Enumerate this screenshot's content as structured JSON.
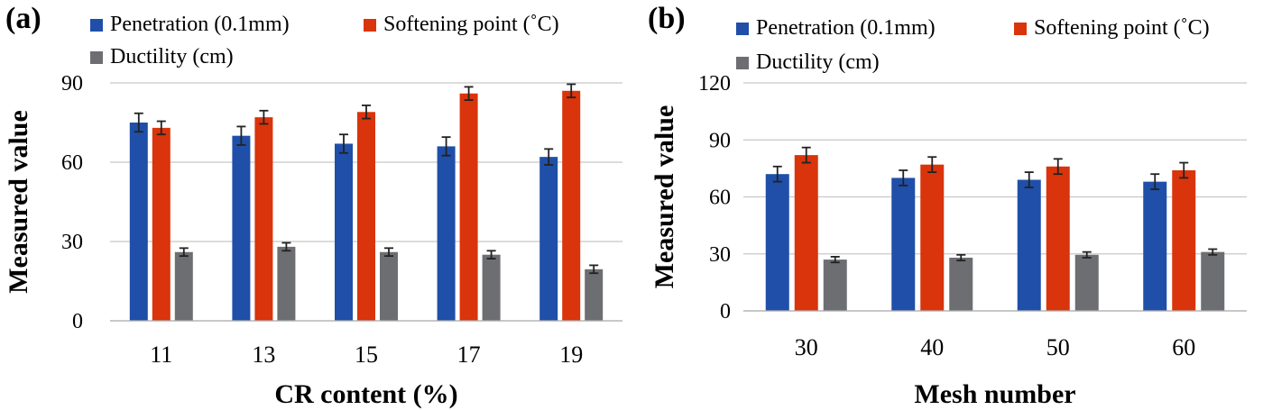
{
  "chart_data": [
    {
      "type": "bar",
      "panel_label": "(a)",
      "categories": [
        "11",
        "13",
        "15",
        "17",
        "19"
      ],
      "series": [
        {
          "name": "Penetration (0.1mm)",
          "color": "#1f4fa8",
          "values": [
            75,
            70,
            67,
            66,
            62
          ],
          "errors": [
            3.5,
            3.5,
            3.5,
            3.5,
            3
          ]
        },
        {
          "name": "Softening point (˚C)",
          "color": "#d9340b",
          "values": [
            73,
            77,
            79,
            86,
            87
          ],
          "errors": [
            2.5,
            2.5,
            2.5,
            2.5,
            2.5
          ]
        },
        {
          "name": "Ductility (cm)",
          "color": "#6d6e71",
          "values": [
            26,
            28,
            26,
            25,
            19.5
          ],
          "errors": [
            1.5,
            1.5,
            1.5,
            1.5,
            1.5
          ]
        }
      ],
      "xlabel": "CR content (%)",
      "ylabel": "Measured value",
      "ylim": [
        0,
        90
      ],
      "yticks": [
        0,
        30,
        60,
        90
      ],
      "ytick_labels": [
        "0",
        "30",
        "60",
        "90"
      ],
      "grid": true
    },
    {
      "type": "bar",
      "panel_label": "(b)",
      "categories": [
        "30",
        "40",
        "50",
        "60"
      ],
      "series": [
        {
          "name": "Penetration (0.1mm)",
          "color": "#1f4fa8",
          "values": [
            72,
            70,
            69,
            68
          ],
          "errors": [
            4,
            4,
            4,
            4
          ]
        },
        {
          "name": "Softening point (˚C)",
          "color": "#d9340b",
          "values": [
            82,
            77,
            76,
            74
          ],
          "errors": [
            4,
            4,
            4,
            4
          ]
        },
        {
          "name": "Ductility (cm)",
          "color": "#6d6e71",
          "values": [
            27,
            28,
            29.5,
            31
          ],
          "errors": [
            1.5,
            1.5,
            1.5,
            1.5
          ]
        }
      ],
      "xlabel": "Mesh number",
      "ylabel": "Measured value",
      "ylim": [
        0,
        120
      ],
      "yticks": [
        0,
        30,
        60,
        90,
        120
      ],
      "ytick_labels": [
        "0",
        "30",
        "60",
        "90",
        "120"
      ],
      "grid": true
    }
  ]
}
